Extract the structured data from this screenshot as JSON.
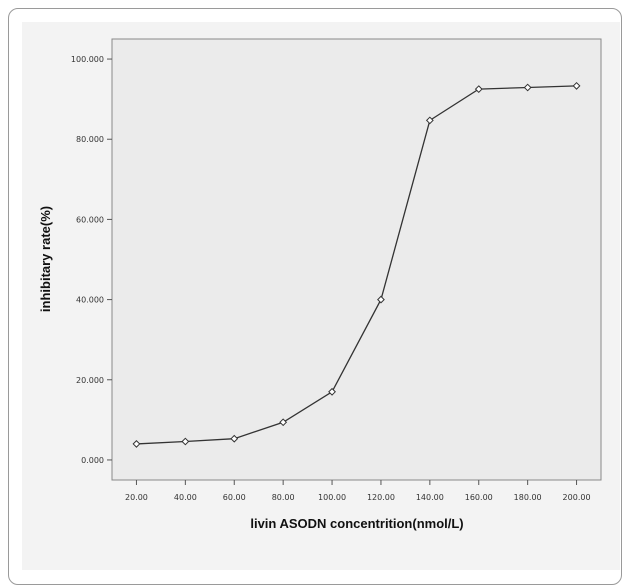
{
  "chart_data": {
    "type": "line",
    "xlabel": "livin ASODN concentrition(nmol/L)",
    "ylabel": "inhibitary rate(%)",
    "x_ticks": [
      "20.00",
      "40.00",
      "60.00",
      "80.00",
      "100.00",
      "120.00",
      "140.00",
      "160.00",
      "180.00",
      "200.00"
    ],
    "y_ticks": [
      "0.000",
      "20.000",
      "40.000",
      "60.000",
      "80.000",
      "100.000"
    ],
    "xlim": [
      10,
      210
    ],
    "ylim": [
      -5,
      105
    ],
    "grid": false,
    "series": [
      {
        "x": [
          20,
          40,
          60,
          80,
          100,
          120,
          140,
          160,
          180,
          200
        ],
        "y": [
          4.0,
          4.6,
          5.3,
          9.4,
          17.0,
          40.0,
          84.7,
          92.5,
          92.9,
          93.3
        ]
      }
    ],
    "colors": {
      "plot_background": "#f3f3f3",
      "line": "#333333",
      "marker_fill": "#ffffff"
    }
  }
}
